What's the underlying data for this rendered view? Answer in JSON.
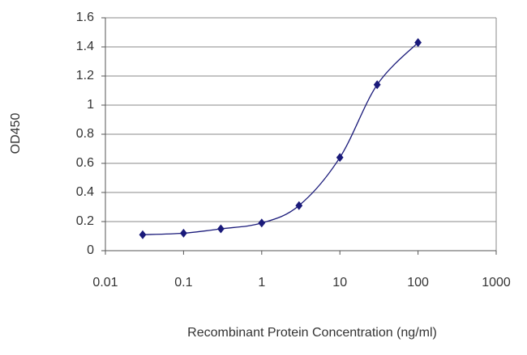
{
  "chart_data": {
    "type": "line",
    "x_label": "Recombinant Protein Concentration (ng/ml)",
    "y_label": "OD450",
    "x": [
      0.03,
      0.1,
      0.3,
      1,
      3,
      10,
      30,
      100
    ],
    "series": [
      {
        "color": "#1a1a7a",
        "values": [
          0.11,
          0.12,
          0.15,
          0.19,
          0.31,
          0.64,
          1.14,
          1.43
        ]
      }
    ],
    "xscale": "log",
    "xlim": [
      0.01,
      1000
    ],
    "xticks": [
      0.01,
      0.1,
      1,
      10,
      100,
      1000
    ],
    "ylim": [
      0,
      1.6
    ],
    "yticks": [
      0,
      0.2,
      0.4,
      0.6,
      0.8,
      1,
      1.2,
      1.4,
      1.6
    ],
    "grid": true,
    "smooth": true
  }
}
